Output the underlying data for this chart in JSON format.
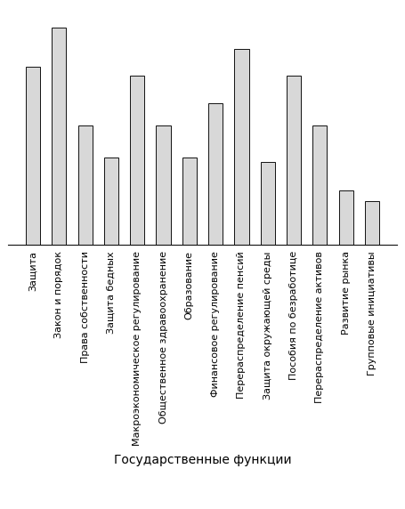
{
  "categories": [
    "Защита",
    "Закон и порядок",
    "Права собственности",
    "Защита бедных",
    "Макроэкономическое регулирование",
    "Общественное здравоохранение",
    "Образование",
    "Финансовое регулирование",
    "Перераспределение пенсий",
    "Защита окружающей среды",
    "Пособия по безработице",
    "Перераспределение активов",
    "Развитие рынка",
    "Групповые инициативы"
  ],
  "values": [
    82,
    100,
    55,
    40,
    78,
    55,
    40,
    65,
    90,
    38,
    78,
    55,
    25,
    20
  ],
  "bar_color": "#d8d8d8",
  "bar_edge_color": "#111111",
  "xlabel": "Государственные функции",
  "ylim": [
    0,
    108
  ],
  "background_color": "#ffffff",
  "xlabel_fontsize": 10,
  "tick_label_fontsize": 8,
  "bar_width": 0.55,
  "figwidth": 4.55,
  "figheight": 5.72,
  "dpi": 100
}
